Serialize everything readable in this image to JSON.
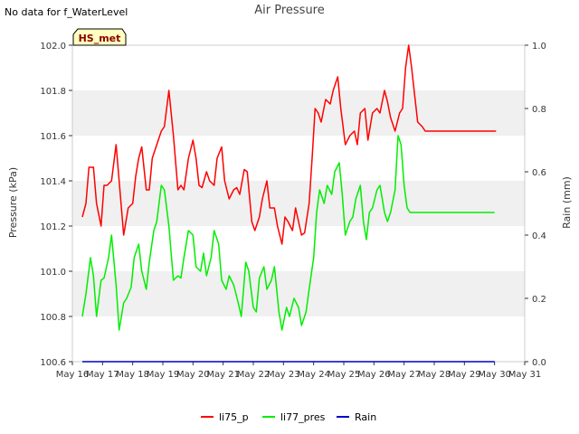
{
  "note": "No data for f_WaterLevel",
  "chart_data": {
    "type": "line",
    "title": "Air Pressure",
    "badge": "HS_met",
    "xlabel": "",
    "ylabel": "Pressure (kPa)",
    "y2label": "Rain (mm)",
    "x_ticks": [
      "May 16",
      "May 17",
      "May 18",
      "May 19",
      "May 20",
      "May 21",
      "May 22",
      "May 23",
      "May 24",
      "May 25",
      "May 26",
      "May 27",
      "May 28",
      "May 29",
      "May 30",
      "May 31"
    ],
    "xlim": [
      16,
      31
    ],
    "ylim": [
      100.6,
      102.0
    ],
    "y_ticks": [
      100.6,
      100.8,
      101.0,
      101.2,
      101.4,
      101.6,
      101.8,
      102.0
    ],
    "y2lim": [
      0.0,
      1.0
    ],
    "y2_ticks": [
      0.0,
      0.2,
      0.4,
      0.6,
      0.8,
      1.0
    ],
    "grid": "alternating horizontal bands",
    "legend_placement": "bottom-center",
    "colors": {
      "li75_p": "#ff0000",
      "li77_pres": "#00ee00",
      "Rain": "#0000cc",
      "band": "#f0f0f0"
    },
    "series": [
      {
        "name": "li75_p",
        "axis": "left",
        "x": [
          16.33,
          16.45,
          16.55,
          16.7,
          16.8,
          16.95,
          17.05,
          17.15,
          17.3,
          17.45,
          17.55,
          17.7,
          17.85,
          18.0,
          18.1,
          18.2,
          18.3,
          18.45,
          18.55,
          18.65,
          18.8,
          18.95,
          19.05,
          19.2,
          19.35,
          19.5,
          19.6,
          19.7,
          19.85,
          20.0,
          20.1,
          20.2,
          20.3,
          20.45,
          20.55,
          20.7,
          20.8,
          20.95,
          21.05,
          21.2,
          21.35,
          21.45,
          21.55,
          21.7,
          21.8,
          21.95,
          22.05,
          22.2,
          22.3,
          22.45,
          22.55,
          22.7,
          22.8,
          22.95,
          23.05,
          23.15,
          23.3,
          23.4,
          23.5,
          23.6,
          23.7,
          23.85,
          23.95,
          24.05,
          24.15,
          24.25,
          24.4,
          24.55,
          24.65,
          24.8,
          24.9,
          25.05,
          25.2,
          25.35,
          25.45,
          25.55,
          25.7,
          25.8,
          25.95,
          26.1,
          26.2,
          26.35,
          26.45,
          26.55,
          26.7,
          26.85,
          26.95,
          27.05,
          27.15,
          27.25,
          27.35,
          27.45,
          27.6,
          27.7,
          27.85,
          27.95,
          28.05,
          28.15,
          28.3,
          28.45,
          28.55,
          28.65,
          28.8,
          28.95,
          29.05,
          29.15,
          29.3,
          29.45,
          29.6,
          29.7,
          29.85,
          29.95,
          30.05
        ],
        "y": [
          101.24,
          101.3,
          101.46,
          101.46,
          101.3,
          101.2,
          101.38,
          101.38,
          101.4,
          101.56,
          101.4,
          101.16,
          101.28,
          101.3,
          101.42,
          101.5,
          101.55,
          101.36,
          101.36,
          101.5,
          101.56,
          101.62,
          101.64,
          101.8,
          101.6,
          101.36,
          101.38,
          101.36,
          101.5,
          101.58,
          101.5,
          101.38,
          101.37,
          101.44,
          101.4,
          101.38,
          101.5,
          101.55,
          101.4,
          101.32,
          101.36,
          101.37,
          101.34,
          101.45,
          101.44,
          101.22,
          101.18,
          101.24,
          101.32,
          101.4,
          101.28,
          101.28,
          101.2,
          101.12,
          101.24,
          101.22,
          101.18,
          101.28,
          101.22,
          101.16,
          101.17,
          101.3,
          101.5,
          101.72,
          101.7,
          101.66,
          101.76,
          101.74,
          101.8,
          101.86,
          101.72,
          101.56,
          101.6,
          101.62,
          101.56,
          101.7,
          101.72,
          101.58,
          101.7,
          101.72,
          101.7,
          101.8,
          101.75,
          101.68,
          101.62,
          101.7,
          101.72,
          101.9,
          102.0,
          101.9,
          101.78,
          101.66,
          101.64,
          101.62,
          101.62,
          101.62,
          101.62,
          101.62,
          101.62,
          101.62,
          101.62,
          101.62,
          101.62,
          101.62,
          101.62,
          101.62,
          101.62,
          101.62,
          101.62,
          101.62,
          101.62,
          101.62,
          101.62
        ]
      },
      {
        "name": "li77_pres",
        "axis": "left",
        "x": [
          16.33,
          16.45,
          16.6,
          16.7,
          16.8,
          16.95,
          17.05,
          17.2,
          17.3,
          17.45,
          17.55,
          17.7,
          17.8,
          17.95,
          18.05,
          18.2,
          18.3,
          18.45,
          18.55,
          18.7,
          18.8,
          18.95,
          19.05,
          19.2,
          19.35,
          19.5,
          19.6,
          19.7,
          19.85,
          20.0,
          20.1,
          20.25,
          20.35,
          20.45,
          20.6,
          20.7,
          20.85,
          20.95,
          21.1,
          21.2,
          21.35,
          21.5,
          21.6,
          21.75,
          21.85,
          22.0,
          22.1,
          22.2,
          22.35,
          22.45,
          22.6,
          22.7,
          22.85,
          22.95,
          23.1,
          23.2,
          23.35,
          23.5,
          23.6,
          23.75,
          23.85,
          24.0,
          24.1,
          24.2,
          24.35,
          24.45,
          24.6,
          24.7,
          24.85,
          24.95,
          25.05,
          25.2,
          25.3,
          25.4,
          25.55,
          25.65,
          25.75,
          25.85,
          25.95,
          26.1,
          26.2,
          26.35,
          26.45,
          26.55,
          26.7,
          26.8,
          26.9,
          27.0,
          27.1,
          27.2,
          27.35,
          27.45,
          27.55,
          27.7,
          27.8,
          27.9,
          28.05,
          28.2,
          28.35,
          28.45,
          28.55,
          28.7,
          28.8,
          28.95,
          29.05,
          29.15,
          29.3,
          29.4,
          29.55,
          29.65,
          29.8,
          29.9,
          30.0
        ],
        "y": [
          100.8,
          100.9,
          101.06,
          100.98,
          100.8,
          100.96,
          100.97,
          101.06,
          101.16,
          100.94,
          100.74,
          100.86,
          100.88,
          100.93,
          101.06,
          101.12,
          101.0,
          100.92,
          101.04,
          101.18,
          101.22,
          101.38,
          101.36,
          101.2,
          100.96,
          100.98,
          100.97,
          101.06,
          101.18,
          101.16,
          101.02,
          101.0,
          101.08,
          100.98,
          101.06,
          101.18,
          101.12,
          100.96,
          100.92,
          100.98,
          100.94,
          100.86,
          100.8,
          101.04,
          101.0,
          100.84,
          100.82,
          100.97,
          101.02,
          100.92,
          100.96,
          101.02,
          100.82,
          100.74,
          100.84,
          100.8,
          100.88,
          100.84,
          100.76,
          100.82,
          100.92,
          101.06,
          101.26,
          101.36,
          101.3,
          101.38,
          101.34,
          101.44,
          101.48,
          101.34,
          101.16,
          101.22,
          101.24,
          101.32,
          101.38,
          101.22,
          101.14,
          101.26,
          101.28,
          101.36,
          101.38,
          101.26,
          101.22,
          101.26,
          101.36,
          101.6,
          101.56,
          101.38,
          101.28,
          101.26,
          101.26,
          101.26,
          101.26,
          101.26,
          101.26,
          101.26,
          101.26,
          101.26,
          101.26,
          101.26,
          101.26,
          101.26,
          101.26,
          101.26,
          101.26,
          101.26,
          101.26,
          101.26,
          101.26,
          101.26,
          101.26,
          101.26,
          101.26
        ]
      },
      {
        "name": "Rain",
        "axis": "right",
        "x": [
          16.33,
          30.0
        ],
        "y": [
          0.0,
          0.0
        ]
      }
    ]
  }
}
